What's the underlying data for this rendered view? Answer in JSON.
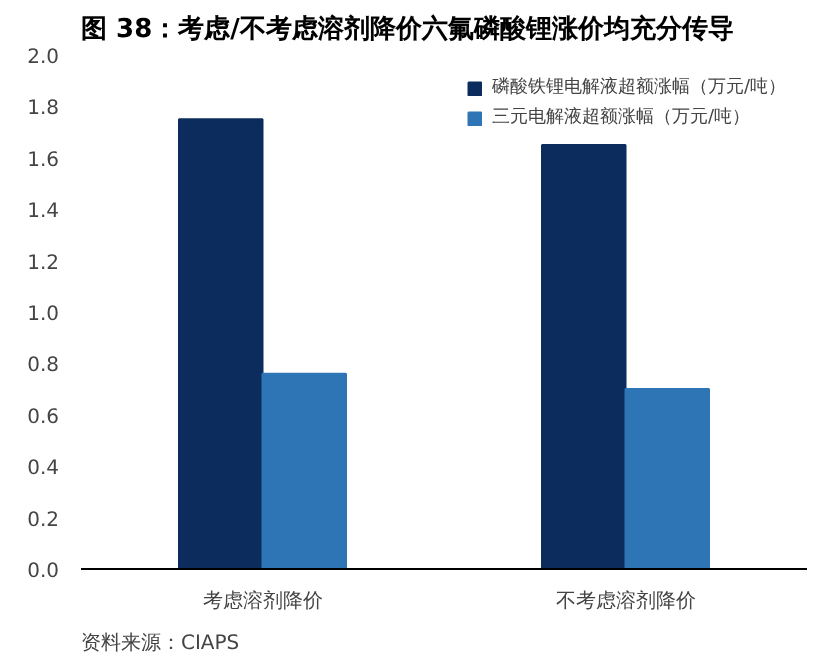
{
  "chart_data": {
    "type": "bar",
    "title": "图 38：考虑/不考虑溶剂降价六氟磷酸锂涨价均充分传导",
    "categories": [
      "考虑溶剂降价",
      "不考虑溶剂降价"
    ],
    "series": [
      {
        "name": "磷酸铁锂电解液超额涨幅（万元/吨）",
        "color": "#0b2c5c",
        "values": [
          1.75,
          1.65
        ]
      },
      {
        "name": "三元电解液超额涨幅（万元/吨）",
        "color": "#2e75b6",
        "values": [
          0.76,
          0.7
        ]
      }
    ],
    "ylim": [
      0,
      2.0
    ],
    "yticks": [
      {
        "value": 0,
        "label": "0.0"
      },
      {
        "value": 0.2,
        "label": "0.2"
      },
      {
        "value": 0.4,
        "label": "0.4"
      },
      {
        "value": 0.6,
        "label": "0.6"
      },
      {
        "value": 0.8,
        "label": "0.8"
      },
      {
        "value": 1.0,
        "label": "1.0"
      },
      {
        "value": 1.2,
        "label": "1.2"
      },
      {
        "value": 1.4,
        "label": "1.4"
      },
      {
        "value": 1.6,
        "label": "1.6"
      },
      {
        "value": 1.8,
        "label": "1.8"
      },
      {
        "value": 2.0,
        "label": "2.0"
      }
    ],
    "grid": false,
    "legend": "top right",
    "annotations": [
      "资料来源：CIAPS"
    ]
  }
}
